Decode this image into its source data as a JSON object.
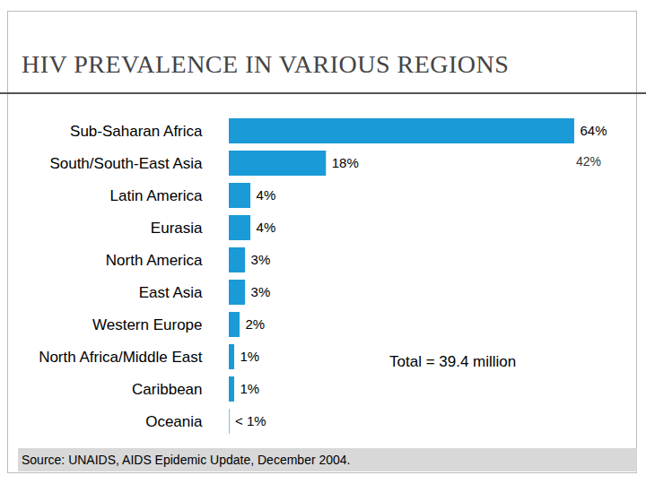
{
  "chart_data": {
    "type": "bar",
    "title": "HIV PREVALENCE IN VARIOUS REGIONS",
    "orientation": "horizontal",
    "categories": [
      "Sub-Saharan Africa",
      "South/South-East Asia",
      "Latin America",
      "Eurasia",
      "North America",
      "East Asia",
      "Western Europe",
      "North Africa/Middle East",
      "Caribbean",
      "Oceania"
    ],
    "values": [
      64,
      18,
      4,
      4,
      3,
      3,
      2,
      1,
      1,
      0.1
    ],
    "value_labels": [
      "64%",
      "18%",
      "4%",
      "4%",
      "3%",
      "3%",
      "2%",
      "1%",
      "1%",
      "< 1%"
    ],
    "data_labels": true,
    "color": "#1a9bd7",
    "tick_labels": "y",
    "annotations": [
      "42%",
      "Total = 39.4 million"
    ],
    "source": "Source: UNAIDS, AIDS Epidemic Update, December 2004."
  }
}
